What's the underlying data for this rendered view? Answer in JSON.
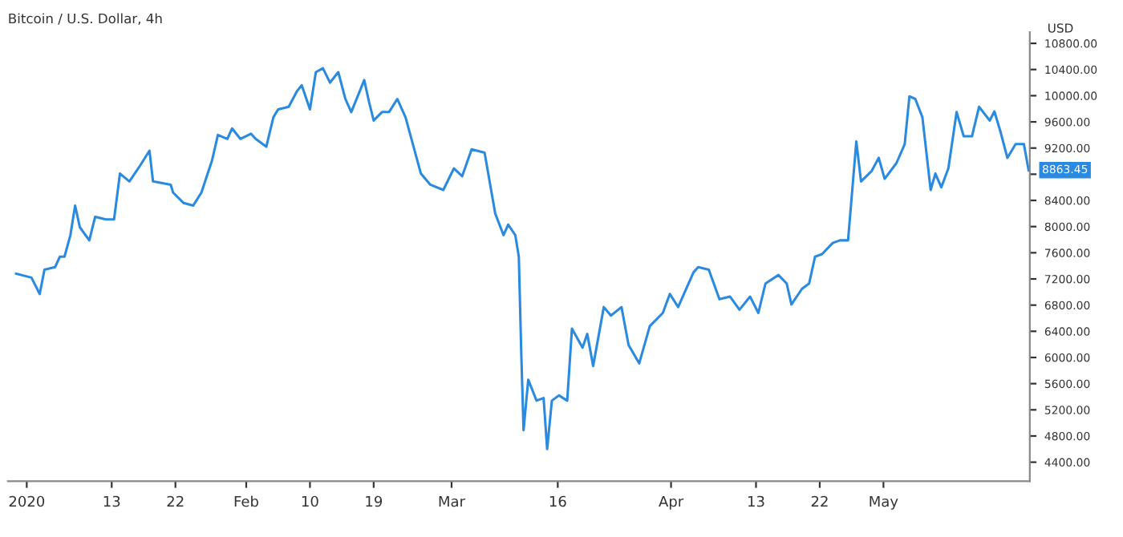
{
  "chart_data": {
    "type": "line",
    "title": "Bitcoin / U.S. Dollar, 4h",
    "ylabel": "USD",
    "x": [
      "2019-12-30T12:00",
      "2020-01-01T16:00",
      "2020-01-02T20:00",
      "2020-01-03T12:00",
      "2020-01-05T00:00",
      "2020-01-05T16:00",
      "2020-01-06T08:00",
      "2020-01-07T04:00",
      "2020-01-07T20:00",
      "2020-01-08T12:00",
      "2020-01-09T20:00",
      "2020-01-10T16:00",
      "2020-01-12T04:00",
      "2020-01-13T08:00",
      "2020-01-14T04:00",
      "2020-01-15T12:00",
      "2020-01-17T00:00",
      "2020-01-18T08:00",
      "2020-01-18T20:00",
      "2020-01-21T08:00",
      "2020-01-21T16:00",
      "2020-01-23T04:00",
      "2020-01-24T12:00",
      "2020-01-25T16:00",
      "2020-01-27T04:00",
      "2020-01-28T00:00",
      "2020-01-29T08:00",
      "2020-01-30T00:00",
      "2020-01-31T04:00",
      "2020-02-01T16:00",
      "2020-02-02T08:00",
      "2020-02-03T20:00",
      "2020-02-04T20:00",
      "2020-02-05T12:00",
      "2020-02-07T00:00",
      "2020-02-08T04:00",
      "2020-02-08T20:00",
      "2020-02-10T00:00",
      "2020-02-10T20:00",
      "2020-02-11T20:00",
      "2020-02-12T20:00",
      "2020-02-14T00:00",
      "2020-02-15T00:00",
      "2020-02-15T20:00",
      "2020-02-17T16:00",
      "2020-02-18T08:00",
      "2020-02-19T00:00",
      "2020-02-20T04:00",
      "2020-02-21T04:00",
      "2020-02-22T08:00",
      "2020-02-23T12:00",
      "2020-02-25T16:00",
      "2020-02-27T00:00",
      "2020-02-28T20:00",
      "2020-03-01T08:00",
      "2020-03-02T12:00",
      "2020-03-03T20:00",
      "2020-03-05T16:00",
      "2020-03-07T04:00",
      "2020-03-08T08:00",
      "2020-03-09T00:00",
      "2020-03-10T00:00",
      "2020-03-10T12:00",
      "2020-03-10T20:00",
      "2020-03-11T04:00",
      "2020-03-11T20:00",
      "2020-03-13T00:00",
      "2020-03-14T00:00",
      "2020-03-14T12:00",
      "2020-03-15T04:00",
      "2020-03-16T04:00",
      "2020-03-17T08:00",
      "2020-03-18T00:00",
      "2020-03-19T12:00",
      "2020-03-20T04:00",
      "2020-03-21T00:00",
      "2020-03-22T12:00",
      "2020-03-23T12:00",
      "2020-03-25T00:00",
      "2020-03-26T00:00",
      "2020-03-27T12:00",
      "2020-03-29T00:00",
      "2020-03-30T20:00",
      "2020-03-31T20:00",
      "2020-04-02T00:00",
      "2020-04-04T04:00",
      "2020-04-04T20:00",
      "2020-04-06T08:00",
      "2020-04-07T20:00",
      "2020-04-09T08:00",
      "2020-04-10T16:00",
      "2020-04-12T04:00",
      "2020-04-13T08:00",
      "2020-04-14T08:00",
      "2020-04-16T04:00",
      "2020-04-17T08:00",
      "2020-04-18T00:00",
      "2020-04-19T12:00",
      "2020-04-20T12:00",
      "2020-04-21T08:00",
      "2020-04-22T08:00",
      "2020-04-23T20:00",
      "2020-04-24T20:00",
      "2020-04-26T00:00",
      "2020-04-27T04:00",
      "2020-04-27T20:00",
      "2020-04-29T08:00",
      "2020-04-30T08:00",
      "2020-05-01T04:00",
      "2020-05-02T20:00",
      "2020-05-04T00:00",
      "2020-05-04T16:00",
      "2020-05-05T12:00",
      "2020-05-06T12:00",
      "2020-05-07T16:00",
      "2020-05-08T08:00",
      "2020-05-09T04:00",
      "2020-05-10T04:00",
      "2020-05-11T08:00",
      "2020-05-12T08:00",
      "2020-05-13T12:00",
      "2020-05-14T12:00",
      "2020-05-16T00:00",
      "2020-05-16T16:00",
      "2020-05-17T12:00",
      "2020-05-18T12:00",
      "2020-05-19T16:00",
      "2020-05-20T20:00",
      "2020-05-21T12:00"
    ],
    "series": [
      {
        "color": "#2a8ae0",
        "values": [
          7280,
          7220,
          6970,
          7340,
          7380,
          7540,
          7540,
          7870,
          8320,
          7990,
          7790,
          8150,
          8110,
          8110,
          8810,
          8690,
          8930,
          9160,
          8690,
          8640,
          8520,
          8360,
          8320,
          8520,
          9010,
          9400,
          9340,
          9500,
          9340,
          9420,
          9340,
          9220,
          9670,
          9790,
          9830,
          10070,
          10160,
          9790,
          10360,
          10420,
          10200,
          10360,
          9950,
          9750,
          10240,
          9910,
          9620,
          9750,
          9750,
          9950,
          9670,
          8810,
          8640,
          8560,
          8890,
          8770,
          9180,
          9130,
          8200,
          7870,
          8030,
          7870,
          7540,
          6110,
          4890,
          5660,
          5340,
          5380,
          4600,
          5340,
          5420,
          5340,
          6440,
          6150,
          6360,
          5870,
          6770,
          6640,
          6770,
          6190,
          5910,
          6480,
          6680,
          6970,
          6770,
          7300,
          7380,
          7340,
          6890,
          6930,
          6730,
          6930,
          6680,
          7130,
          7260,
          7130,
          6810,
          7050,
          7130,
          7540,
          7580,
          7750,
          7790,
          7790,
          9300,
          8690,
          8850,
          9050,
          8730,
          8970,
          9260,
          9990,
          9950,
          9670,
          8560,
          8810,
          8600,
          8890,
          9750,
          9380,
          9380,
          9830,
          9620,
          9760,
          9460,
          9050,
          9260,
          9260,
          8860
        ]
      }
    ],
    "annotations": [
      {
        "text": "8863.45",
        "x": "2020-05-21T12:00",
        "y": 8863.45
      }
    ],
    "xlim": [
      "2019-12-29T08:00",
      "2020-05-21T16:00"
    ],
    "xticks": [
      {
        "value": "2020-01-01",
        "label": "2020"
      },
      {
        "value": "2020-01-13",
        "label": "13"
      },
      {
        "value": "2020-01-22",
        "label": "22"
      },
      {
        "value": "2020-02-01",
        "label": "Feb"
      },
      {
        "value": "2020-02-10",
        "label": "10"
      },
      {
        "value": "2020-02-19",
        "label": "19"
      },
      {
        "value": "2020-03-01",
        "label": "Mar"
      },
      {
        "value": "2020-03-16",
        "label": "16"
      },
      {
        "value": "2020-04-01",
        "label": "Apr"
      },
      {
        "value": "2020-04-13",
        "label": "13"
      },
      {
        "value": "2020-04-22",
        "label": "22"
      },
      {
        "value": "2020-05-01",
        "label": "May"
      }
    ],
    "ylim": [
      4110,
      10970
    ],
    "yticks": [
      {
        "value": 4400,
        "label": "4400.00"
      },
      {
        "value": 4800,
        "label": "4800.00"
      },
      {
        "value": 5200,
        "label": "5200.00"
      },
      {
        "value": 5600,
        "label": "5600.00"
      },
      {
        "value": 6000,
        "label": "6000.00"
      },
      {
        "value": 6400,
        "label": "6400.00"
      },
      {
        "value": 6800,
        "label": "6800.00"
      },
      {
        "value": 7200,
        "label": "7200.00"
      },
      {
        "value": 7600,
        "label": "7600.00"
      },
      {
        "value": 8000,
        "label": "8000.00"
      },
      {
        "value": 8400,
        "label": "8400.00"
      },
      {
        "value": 8800,
        "label": null
      },
      {
        "value": 9200,
        "label": "9200.00"
      },
      {
        "value": 9600,
        "label": "9600.00"
      },
      {
        "value": 10000,
        "label": "10000.00"
      },
      {
        "value": 10400,
        "label": "10400.00"
      },
      {
        "value": 10800,
        "label": "10800.00"
      }
    ],
    "grid": false,
    "marker": "none",
    "line_style": "solid"
  }
}
